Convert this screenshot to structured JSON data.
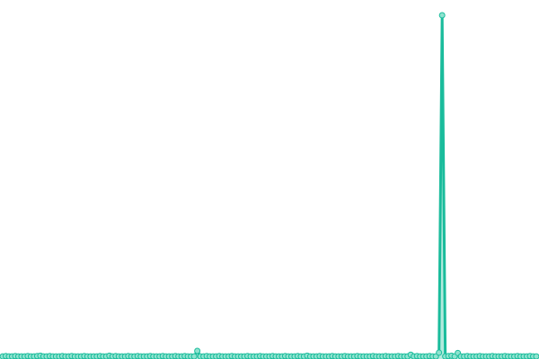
{
  "chart_data": {
    "type": "area",
    "title": "",
    "xlabel": "",
    "ylabel": "",
    "grid": false,
    "legend": "none",
    "ylim": [
      0,
      100
    ],
    "colors": {
      "line": "#1abc9c",
      "area": "#7fdcc6",
      "marker_fill": "#8fe3cf",
      "marker_stroke": "#1abc9c"
    },
    "series": [
      {
        "values": [
          0.1,
          0.2,
          0.1,
          0.1,
          0.2,
          0.1,
          0.1,
          0.1,
          0.2,
          0.1,
          0.1,
          0.2,
          0.3,
          0.1,
          0.1,
          0.2,
          0.1,
          0.1,
          0.1,
          0.2,
          0.1,
          0.1,
          0.2,
          0.1,
          0.1,
          0.1,
          0.2,
          0.1,
          0.1,
          0.1,
          0.1,
          0.2,
          0.1,
          0.1,
          0.3,
          0.1,
          0.2,
          0.1,
          0.1,
          0.1,
          0.2,
          0.1,
          0.1,
          0.2,
          0.1,
          0.1,
          0.1,
          0.2,
          0.1,
          0.1,
          0.1,
          0.2,
          0.1,
          0.1,
          0.1,
          0.2,
          0.1,
          0.1,
          0.2,
          0.1,
          0.1,
          0.1,
          1.7,
          0.1,
          0.1,
          0.2,
          0.1,
          0.1,
          0.1,
          0.2,
          0.1,
          0.1,
          0.1,
          0.2,
          0.1,
          0.1,
          0.1,
          0.1,
          0.2,
          0.1,
          0.1,
          0.1,
          0.2,
          0.1,
          0.1,
          0.1,
          0.2,
          0.1,
          0.1,
          0.1,
          0.2,
          0.1,
          0.1,
          0.1,
          0.2,
          0.1,
          0.1,
          0.3,
          0.1,
          0.1,
          0.1,
          0.2,
          0.1,
          0.1,
          0.1,
          0.2,
          0.1,
          0.1,
          0.1,
          0.2,
          0.1,
          0.1,
          0.1,
          0.2,
          0.1,
          0.1,
          0.1,
          0.1,
          0.2,
          0.1,
          0.1,
          0.1,
          0.2,
          0.1,
          0.1,
          0.1,
          0.2,
          0.1,
          0.1,
          0.1,
          0.6,
          0.1,
          0.2,
          0.1,
          0.1,
          0.1,
          0.2,
          0.1,
          0.1,
          1.2,
          100,
          0.1,
          0.2,
          0.3,
          0.1,
          1.1,
          0.1,
          0.1,
          0.2,
          0.1,
          0.1,
          0.1,
          0.2,
          0.1,
          0.1,
          0.1,
          0.2,
          0.1,
          0.1,
          0.1,
          0.2,
          0.1,
          0.1,
          0.1,
          0.2,
          0.1,
          0.1,
          0.1,
          0.2,
          0.1,
          0.1
        ]
      }
    ]
  }
}
